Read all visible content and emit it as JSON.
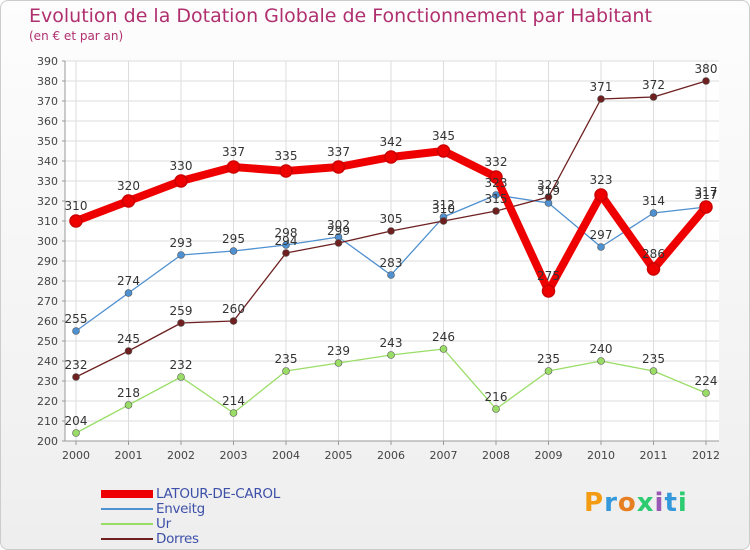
{
  "title": "Evolution de la Dotation Globale de Fonctionnement par Habitant",
  "subtitle": "(en € et par an)",
  "brand": "Proxiti",
  "chart_data": {
    "type": "line",
    "title": "Evolution de la Dotation Globale de Fonctionnement par Habitant",
    "subtitle": "(en € et par an)",
    "xlabel": "",
    "ylabel": "",
    "x": [
      "2000",
      "2001",
      "2002",
      "2003",
      "2004",
      "2005",
      "2006",
      "2007",
      "2008",
      "2009",
      "2010",
      "2011",
      "2012"
    ],
    "ylim": [
      200,
      390
    ],
    "yticks": [
      200,
      210,
      220,
      230,
      240,
      250,
      260,
      270,
      280,
      290,
      300,
      310,
      320,
      330,
      340,
      350,
      360,
      370,
      380,
      390
    ],
    "grid": true,
    "legend_position": "bottom-left",
    "series": [
      {
        "name": "LATOUR-DE-CAROL",
        "color": "#ee0000",
        "values": [
          310,
          320,
          330,
          337,
          335,
          337,
          342,
          345,
          332,
          275,
          323,
          286,
          317
        ]
      },
      {
        "name": "Enveitg",
        "color": "#4f90d0",
        "values": [
          255,
          274,
          293,
          295,
          298,
          302,
          283,
          312,
          323,
          319,
          297,
          314,
          317
        ]
      },
      {
        "name": "Ur",
        "color": "#99dd66",
        "values": [
          204,
          218,
          232,
          214,
          235,
          239,
          243,
          246,
          216,
          235,
          240,
          235,
          224
        ]
      },
      {
        "name": "Dorres",
        "color": "#6e2020",
        "values": [
          232,
          245,
          259,
          260,
          294,
          299,
          305,
          310,
          315,
          322,
          371,
          372,
          380
        ]
      }
    ]
  }
}
